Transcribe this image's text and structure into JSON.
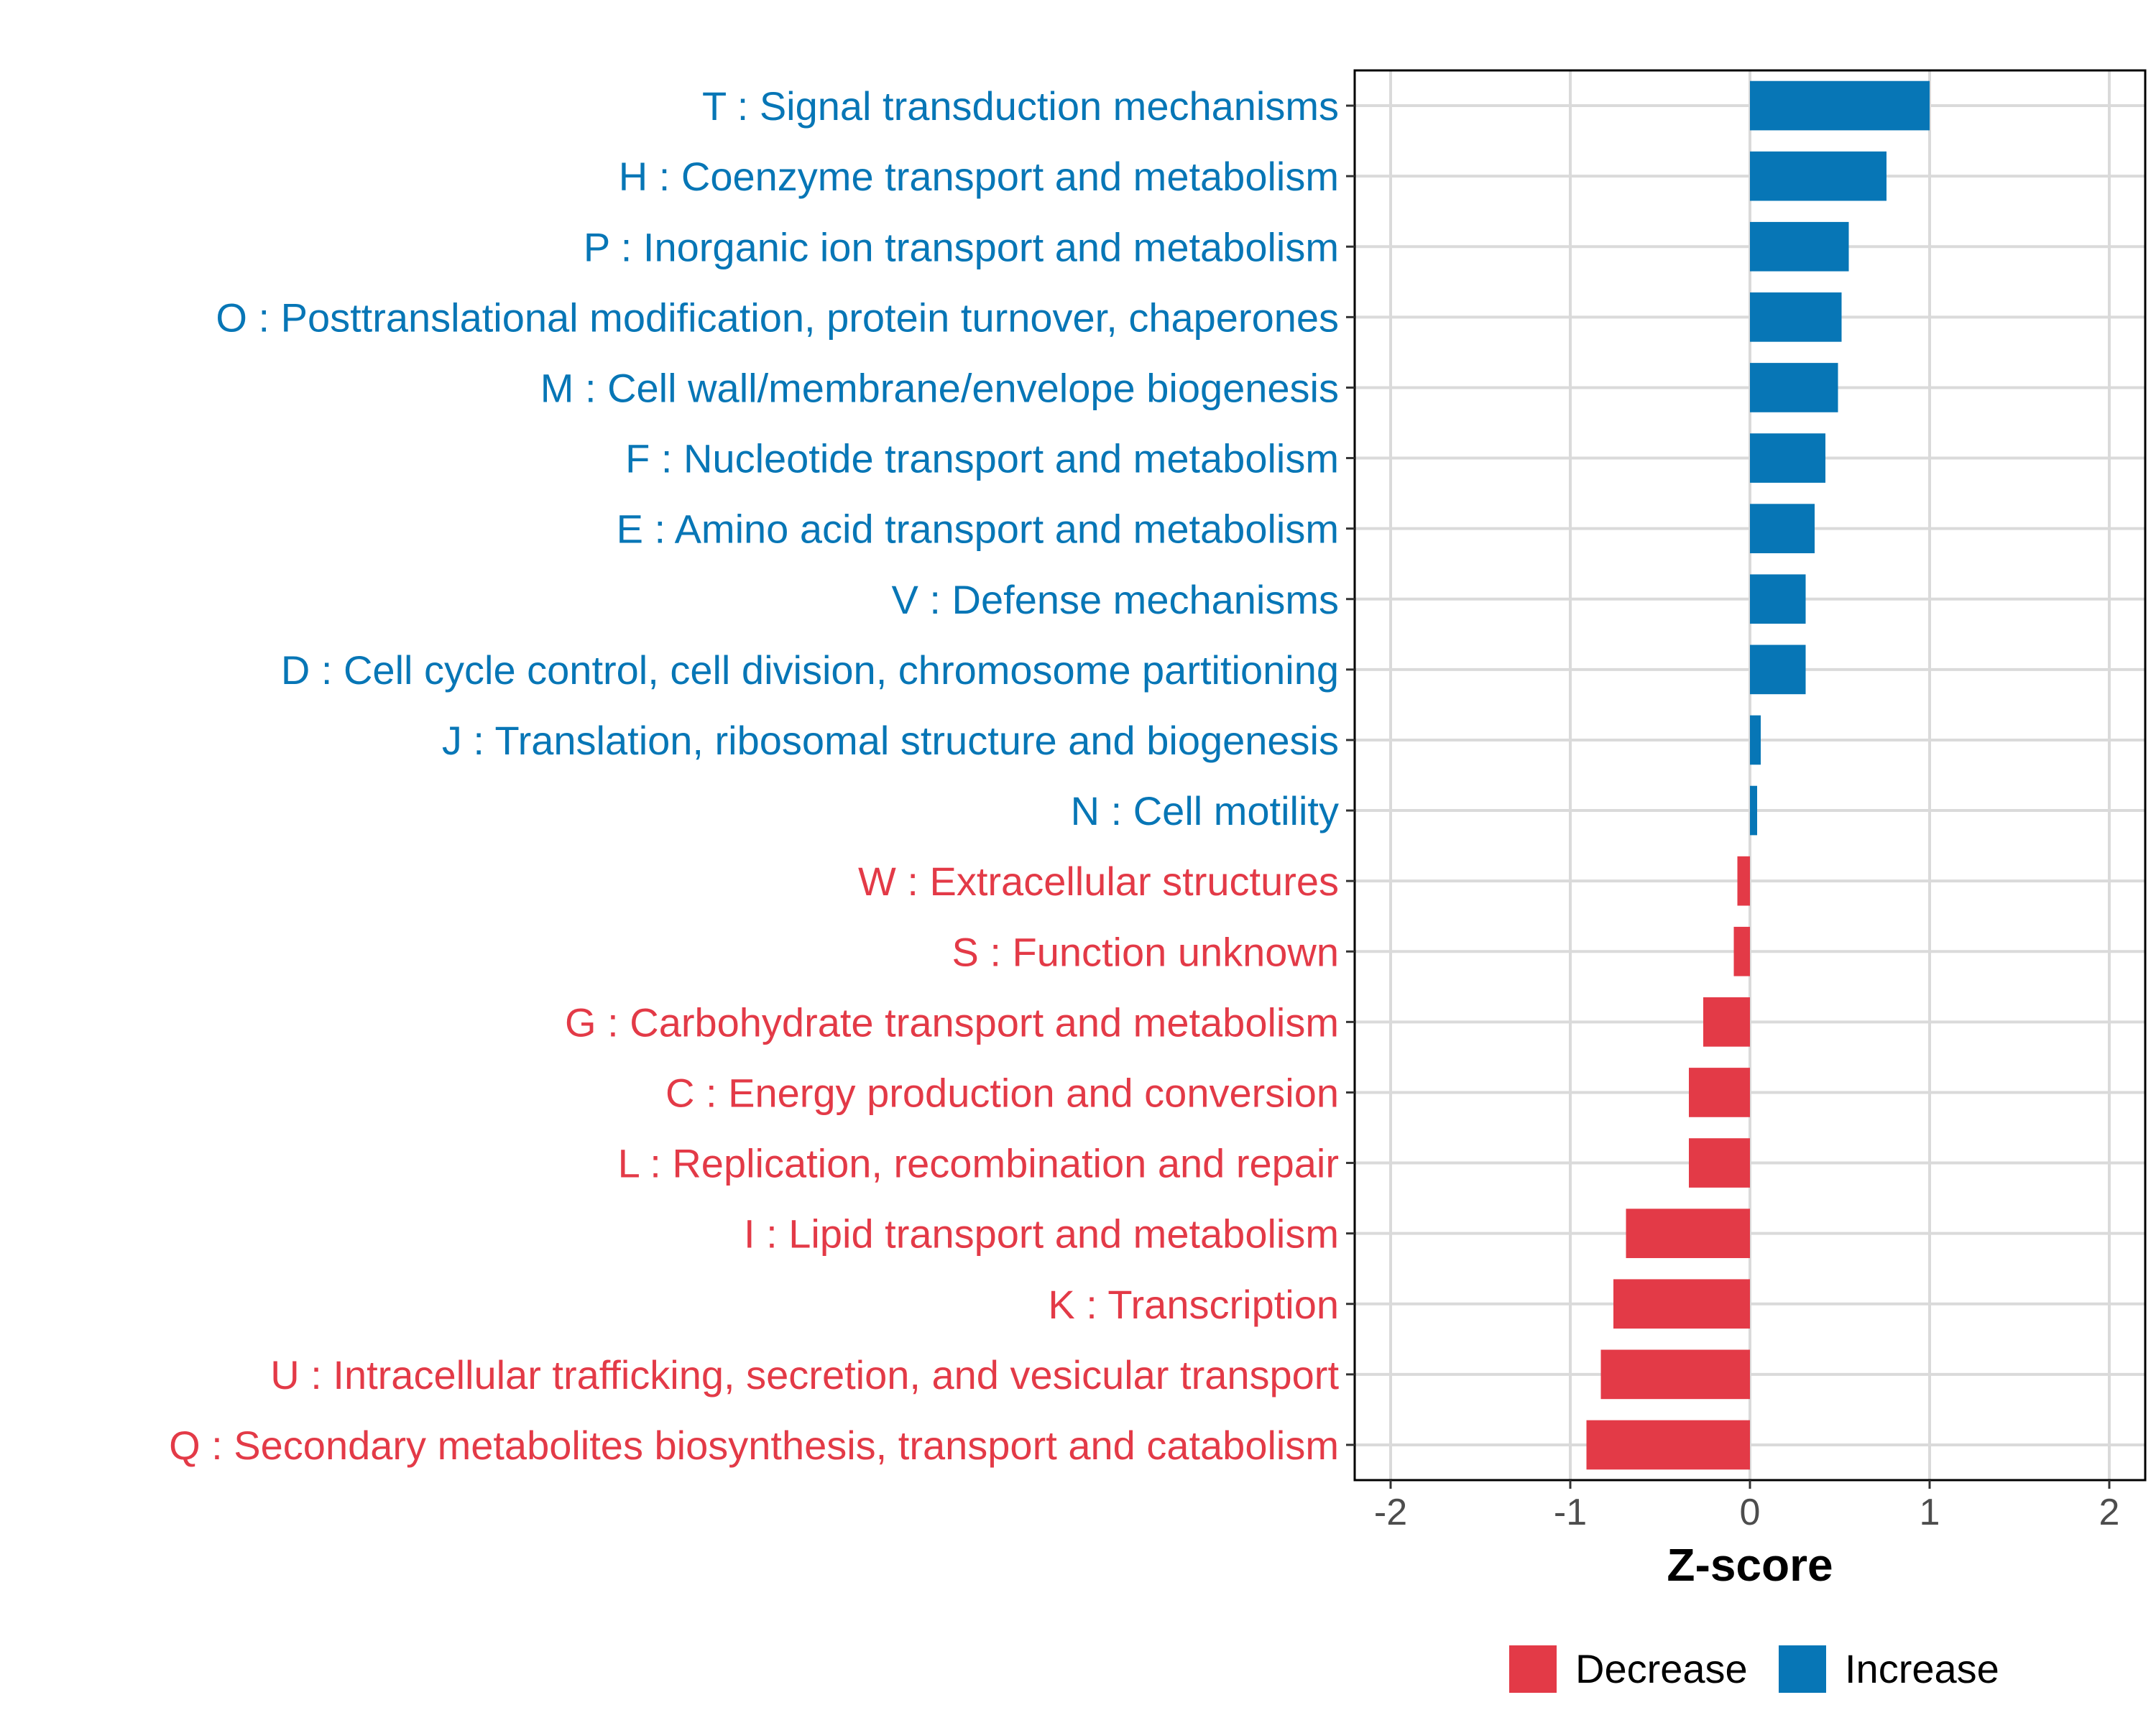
{
  "chart_data": {
    "type": "bar",
    "orientation": "horizontal",
    "title": "",
    "xlabel": "Z-score",
    "ylabel": "",
    "xlim": [
      -2.2,
      2.2
    ],
    "xticks": [
      -2,
      -1,
      0,
      1,
      2
    ],
    "xtick_labels": [
      "-2",
      "-1",
      "0",
      "1",
      "2"
    ],
    "grid": true,
    "colors": {
      "Decrease": "#E33A47",
      "Increase": "#0776B6"
    },
    "categories": [
      "T : Signal transduction mechanisms",
      "H : Coenzyme transport and metabolism",
      "P : Inorganic ion transport and metabolism",
      "O : Posttranslational modification, protein turnover, chaperones",
      "M : Cell wall/membrane/envelope biogenesis",
      "F : Nucleotide transport and metabolism",
      "E : Amino acid transport and metabolism",
      "V : Defense mechanisms",
      "D : Cell cycle control, cell division, chromosome partitioning",
      "J : Translation, ribosomal structure and biogenesis",
      "N : Cell motility",
      "W : Extracellular structures",
      "S : Function unknown",
      "G : Carbohydrate transport and metabolism",
      "C : Energy production and conversion",
      "L : Replication, recombination and repair",
      "I : Lipid transport and metabolism",
      "K : Transcription",
      "U : Intracellular trafficking, secretion, and vesicular transport",
      "Q : Secondary metabolites biosynthesis, transport and catabolism"
    ],
    "values": [
      1.0,
      0.76,
      0.55,
      0.51,
      0.49,
      0.42,
      0.36,
      0.31,
      0.31,
      0.06,
      0.04,
      -0.07,
      -0.09,
      -0.26,
      -0.34,
      -0.34,
      -0.69,
      -0.76,
      -0.83,
      -0.91
    ],
    "groups": [
      "Increase",
      "Increase",
      "Increase",
      "Increase",
      "Increase",
      "Increase",
      "Increase",
      "Increase",
      "Increase",
      "Increase",
      "Increase",
      "Decrease",
      "Decrease",
      "Decrease",
      "Decrease",
      "Decrease",
      "Decrease",
      "Decrease",
      "Decrease",
      "Decrease"
    ],
    "legend": {
      "position": "bottom",
      "entries": [
        {
          "label": "Decrease",
          "group": "Decrease"
        },
        {
          "label": "Increase",
          "group": "Increase"
        }
      ]
    }
  }
}
